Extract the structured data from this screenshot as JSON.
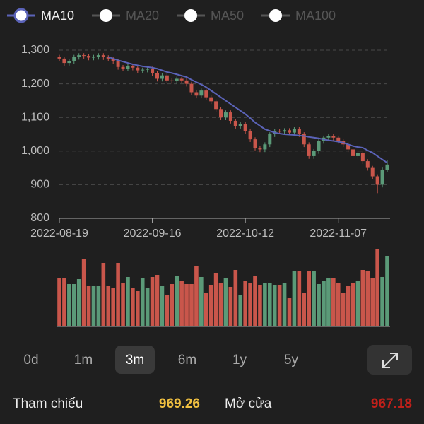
{
  "chart_data": {
    "type": "candlestick",
    "series": [
      {
        "name": "MA10",
        "color": "#5b63b8",
        "values": [
          null,
          null,
          null,
          null,
          null,
          null,
          null,
          null,
          null,
          null,
          1280,
          1275,
          1270,
          1266,
          1262,
          1258,
          1255,
          1252,
          1250,
          1248,
          1245,
          1240,
          1235,
          1232,
          1228,
          1224,
          1220,
          1212,
          1205,
          1198,
          1190,
          1180,
          1170,
          1160,
          1150,
          1140,
          1130,
          1120,
          1110,
          1098,
          1085,
          1075,
          1065,
          1060,
          1055,
          1052,
          1050,
          1049,
          1048,
          1046,
          1045,
          1042,
          1040,
          1038,
          1035,
          1032,
          1030,
          1028,
          1025,
          1020,
          1015,
          1012,
          1010,
          1002,
          995,
          985,
          975,
          965
        ]
      }
    ],
    "hidden_series": [
      "MA20",
      "MA50",
      "MA100"
    ],
    "categories": [
      "2022-08-19",
      null,
      null,
      null,
      null,
      null,
      null,
      null,
      null,
      null,
      null,
      null,
      null,
      null,
      null,
      null,
      null,
      null,
      null,
      "2022-09-16",
      null,
      null,
      null,
      null,
      null,
      null,
      null,
      null,
      null,
      null,
      null,
      null,
      null,
      null,
      null,
      null,
      null,
      null,
      "2022-10-12",
      null,
      null,
      null,
      null,
      null,
      null,
      null,
      null,
      null,
      null,
      null,
      null,
      null,
      null,
      null,
      null,
      null,
      null,
      "2022-11-07",
      null,
      null,
      null,
      null,
      null,
      null,
      null,
      null,
      null,
      null
    ],
    "open": [
      1280,
      1275,
      1262,
      1268,
      1280,
      1285,
      1283,
      1278,
      1280,
      1285,
      1279,
      1275,
      1268,
      1250,
      1245,
      1252,
      1248,
      1240,
      1242,
      1245,
      1232,
      1215,
      1225,
      1210,
      1208,
      1215,
      1210,
      1200,
      1175,
      1165,
      1180,
      1160,
      1148,
      1125,
      1100,
      1115,
      1090,
      1075,
      1080,
      1060,
      1035,
      1010,
      1005,
      1020,
      1050,
      1060,
      1058,
      1062,
      1055,
      1065,
      1050,
      1020,
      985,
      1000,
      1030,
      1040,
      1045,
      1040,
      1030,
      1020,
      1005,
      985,
      995,
      970,
      950,
      925,
      900,
      945
    ],
    "high": [
      1286,
      1281,
      1274,
      1286,
      1291,
      1291,
      1289,
      1286,
      1291,
      1291,
      1285,
      1281,
      1274,
      1256,
      1258,
      1258,
      1254,
      1248,
      1251,
      1251,
      1238,
      1231,
      1231,
      1216,
      1221,
      1221,
      1216,
      1206,
      1181,
      1186,
      1186,
      1166,
      1154,
      1131,
      1121,
      1121,
      1096,
      1086,
      1086,
      1066,
      1041,
      1016,
      1026,
      1056,
      1066,
      1066,
      1068,
      1068,
      1071,
      1071,
      1056,
      1026,
      1006,
      1036,
      1046,
      1051,
      1051,
      1046,
      1036,
      1026,
      1011,
      1001,
      1001,
      976,
      956,
      931,
      951,
      972
    ],
    "low": [
      1267,
      1254,
      1254,
      1260,
      1272,
      1275,
      1270,
      1270,
      1272,
      1271,
      1267,
      1260,
      1242,
      1237,
      1237,
      1240,
      1232,
      1232,
      1234,
      1224,
      1207,
      1207,
      1202,
      1200,
      1200,
      1202,
      1192,
      1167,
      1157,
      1157,
      1152,
      1140,
      1117,
      1092,
      1092,
      1082,
      1067,
      1067,
      1052,
      1027,
      1002,
      997,
      997,
      1012,
      1042,
      1050,
      1050,
      1047,
      1047,
      1042,
      1012,
      977,
      977,
      992,
      1022,
      1032,
      1032,
      1022,
      1012,
      997,
      977,
      977,
      962,
      942,
      917,
      875,
      892,
      938
    ],
    "close": [
      1275,
      1262,
      1268,
      1280,
      1285,
      1283,
      1278,
      1280,
      1285,
      1279,
      1275,
      1268,
      1250,
      1245,
      1252,
      1248,
      1240,
      1242,
      1245,
      1232,
      1215,
      1225,
      1210,
      1208,
      1215,
      1210,
      1200,
      1175,
      1165,
      1180,
      1160,
      1148,
      1125,
      1100,
      1115,
      1090,
      1075,
      1080,
      1060,
      1035,
      1010,
      1005,
      1020,
      1050,
      1060,
      1058,
      1062,
      1055,
      1065,
      1050,
      1020,
      985,
      1000,
      1030,
      1040,
      1045,
      1040,
      1030,
      1020,
      1005,
      985,
      995,
      970,
      950,
      925,
      900,
      945,
      960
    ],
    "volume": [
      68,
      68,
      60,
      60,
      67,
      95,
      57,
      57,
      57,
      90,
      57,
      55,
      90,
      62,
      70,
      55,
      50,
      68,
      55,
      70,
      73,
      57,
      45,
      60,
      72,
      65,
      60,
      60,
      85,
      70,
      48,
      58,
      75,
      62,
      68,
      56,
      80,
      45,
      65,
      62,
      72,
      58,
      62,
      62,
      58,
      58,
      62,
      40,
      78,
      78,
      48,
      78,
      78,
      60,
      65,
      68,
      68,
      62,
      48,
      57,
      62,
      65,
      80,
      78,
      68,
      110,
      70,
      100
    ],
    "up_color": "#5b9a78",
    "down_color": "#c9564b",
    "ylim": [
      800,
      1300
    ],
    "yticks": [
      800,
      900,
      {
        "value": 1000,
        "label": "1,000"
      },
      {
        "value": 1100,
        "label": "1,100"
      },
      {
        "value": 1200,
        "label": "1,200"
      },
      {
        "value": 1300,
        "label": "1,300"
      }
    ],
    "grid": true
  },
  "range_buttons": [
    "0d",
    "1m",
    "3m",
    "6m",
    "1y",
    "5y"
  ],
  "selected_range": 2,
  "stats": [
    {
      "label": "Tham chiếu",
      "value": "969.26",
      "color": "#f0c040"
    },
    {
      "label": "Mở cửa",
      "value": "967.18",
      "color": "#c0201a"
    }
  ]
}
